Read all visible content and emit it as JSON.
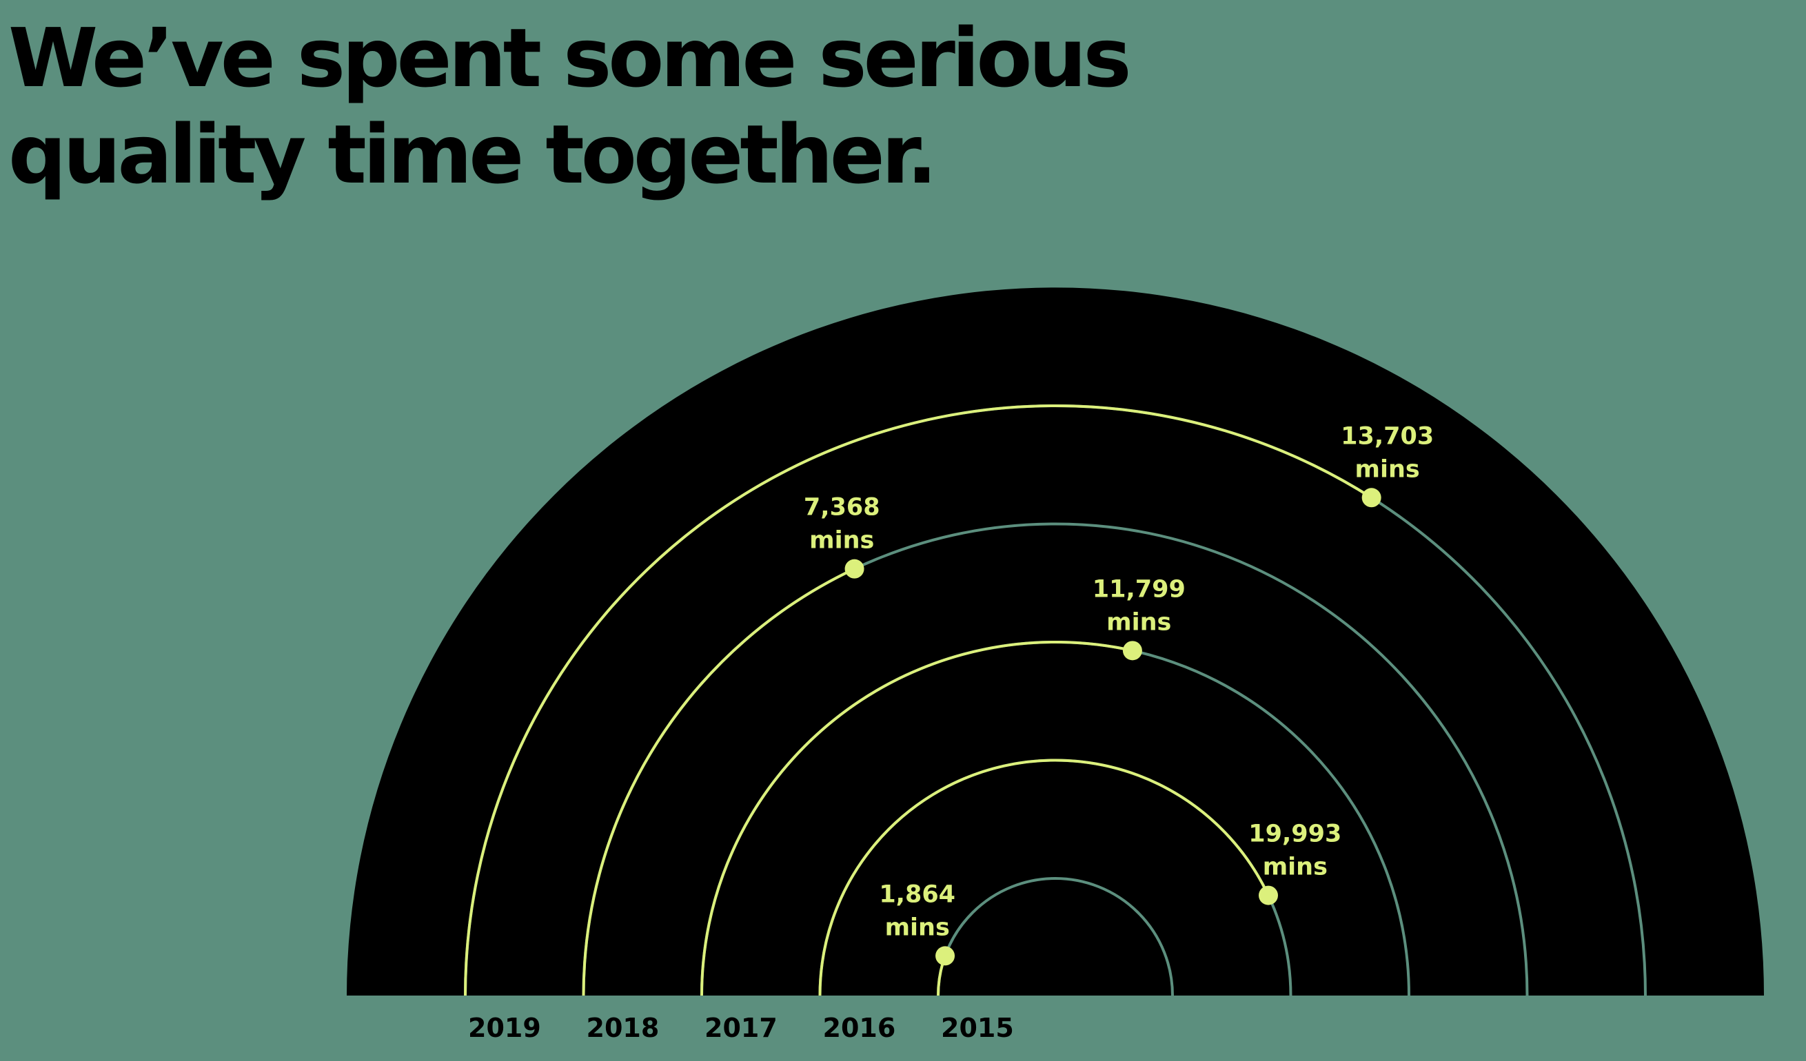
{
  "headline": {
    "line1": "We’ve spent some serious",
    "line2": "quality time together."
  },
  "colors": {
    "background": "#5c8f7e",
    "dial": "#000000",
    "progress": "#dcf07c",
    "track": "#5c8f7e",
    "headline": "#000000",
    "year_label": "#000000"
  },
  "chart_data": {
    "type": "radial-arc",
    "title": "We’ve spent some serious quality time together.",
    "unit": "mins",
    "series": [
      {
        "year": "2015",
        "value": 1864,
        "display": "1,864",
        "fraction": 0.11
      },
      {
        "year": "2016",
        "value": 19993,
        "display": "19,993",
        "fraction": 0.86
      },
      {
        "year": "2017",
        "value": 11799,
        "display": "11,799",
        "fraction": 0.57
      },
      {
        "year": "2018",
        "value": 7368,
        "display": "7,368",
        "fraction": 0.36
      },
      {
        "year": "2019",
        "value": 13703,
        "display": "13,703",
        "fraction": 0.68
      }
    ]
  }
}
